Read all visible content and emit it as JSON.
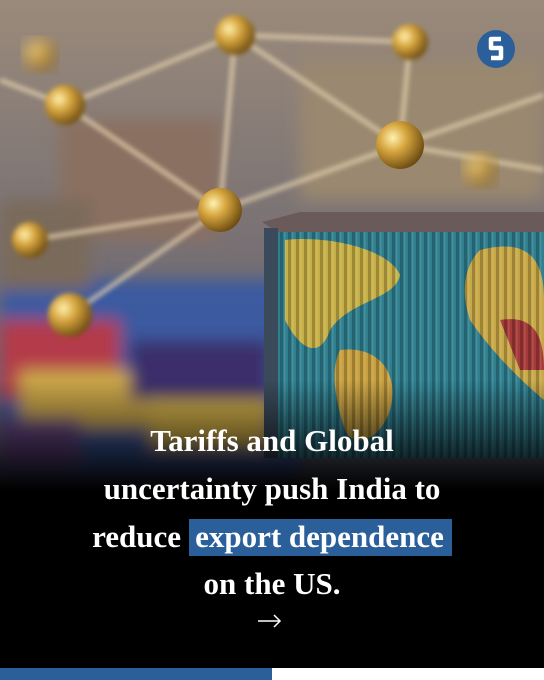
{
  "headline": {
    "line_1": "Tariffs and Global",
    "line_2": "uncertainty push India to",
    "line_3": "reduce",
    "highlight": "export dependence",
    "line_4": "on the US."
  }
}
